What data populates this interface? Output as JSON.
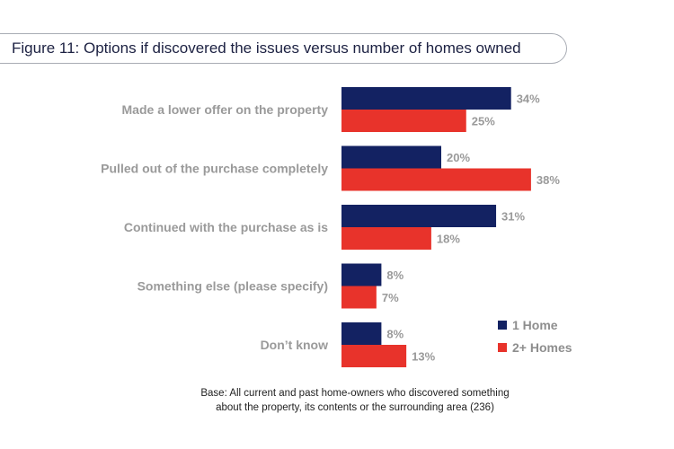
{
  "figure": {
    "title": "Figure 11: Options if discovered the issues versus number of homes owned",
    "base_note_line1": "Base: All current and past home-owners who discovered something",
    "base_note_line2": "about the property, its contents or the surrounding area (236)"
  },
  "colors": {
    "series1": "#132262",
    "series2": "#e8332b"
  },
  "chart_data": {
    "type": "bar",
    "orientation": "horizontal",
    "categories": [
      "Made a lower offer on the property",
      "Pulled out of the purchase completely",
      "Continued with the purchase as is",
      "Something else (please specify)",
      "Don’t know"
    ],
    "series": [
      {
        "name": "1 Home",
        "values": [
          34,
          20,
          31,
          8,
          8
        ],
        "labels": [
          "34%",
          "20%",
          "31%",
          "8%",
          "8%"
        ]
      },
      {
        "name": "2+ Homes",
        "values": [
          25,
          38,
          18,
          7,
          13
        ],
        "labels": [
          "25%",
          "38%",
          "18%",
          "7%",
          "13%"
        ]
      }
    ],
    "title": "Figure 11: Options if discovered the issues versus number of homes owned",
    "xlabel": "",
    "ylabel": "",
    "unit": "%",
    "legend_position": "bottom-right",
    "grid": false
  }
}
